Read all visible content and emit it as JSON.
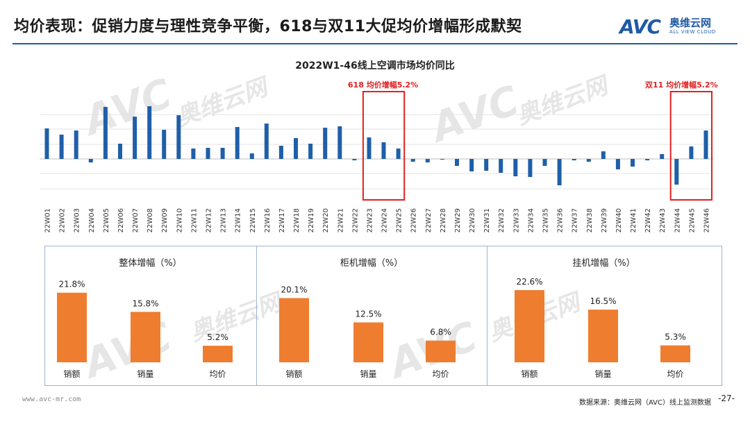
{
  "header": {
    "title": "均价表现：促销力度与理性竞争平衡，618与双11大促均价增幅形成默契",
    "logo_mark": "AVC",
    "logo_cn": "奥维云网",
    "logo_en": "ALL VIEW CLOUD"
  },
  "watermark": {
    "cn": "奥维云网",
    "en": "ALL VIEW CLOUD",
    "mark": "AVC"
  },
  "colors": {
    "bar": "#1f5fa9",
    "panel_bar": "#ef7d2f",
    "highlight": "#e02020",
    "accent": "#1f5aa6"
  },
  "chart_data": [
    {
      "type": "bar",
      "title": "2022W1-46线上空调市场均价同比",
      "categories": [
        "22W01",
        "22W02",
        "22W03",
        "22W04",
        "22W05",
        "22W06",
        "22W07",
        "22W08",
        "22W09",
        "22W10",
        "22W11",
        "22W12",
        "22W13",
        "22W14",
        "22W15",
        "22W16",
        "22W17",
        "22W18",
        "22W19",
        "22W20",
        "22W21",
        "22W22",
        "22W23",
        "22W24",
        "22W25",
        "22W26",
        "22W27",
        "22W28",
        "22W29",
        "22W30",
        "22W31",
        "22W32",
        "22W33",
        "22W34",
        "22W35",
        "22W36",
        "22W37",
        "22W38",
        "22W39",
        "22W40",
        "22W41",
        "22W42",
        "22W43",
        "22W44",
        "22W45",
        "22W46"
      ],
      "values": [
        44,
        35,
        41,
        -5,
        75,
        22,
        61,
        76,
        42,
        63,
        15,
        16,
        16,
        46,
        8,
        51,
        19,
        30,
        22,
        45,
        47,
        -2,
        31,
        24,
        15,
        -4,
        -5,
        -1,
        -10,
        -18,
        -17,
        -20,
        -25,
        -26,
        -10,
        -38,
        -2,
        -4,
        11,
        -15,
        -11,
        -2,
        7,
        -37,
        18,
        41
      ],
      "ylim": [
        -65,
        90
      ],
      "grid": true,
      "annotations": [
        {
          "label": "618  均价增幅5.2%",
          "from": "22W23",
          "to": "22W25"
        },
        {
          "label": "双11  均价增幅5.2%",
          "from": "22W44",
          "to": "22W46"
        }
      ]
    },
    {
      "type": "bar",
      "title": "整体增幅（%）",
      "categories": [
        "销额",
        "销量",
        "均价"
      ],
      "values": [
        21.8,
        15.8,
        5.2
      ],
      "data_labels": [
        "21.8%",
        "15.8%",
        "5.2%"
      ],
      "ylim": [
        0,
        22.6
      ]
    },
    {
      "type": "bar",
      "title": "柜机增幅（%）",
      "categories": [
        "销额",
        "销量",
        "均价"
      ],
      "values": [
        20.1,
        12.5,
        6.8
      ],
      "data_labels": [
        "20.1%",
        "12.5%",
        "6.8%"
      ],
      "ylim": [
        0,
        22.6
      ]
    },
    {
      "type": "bar",
      "title": "挂机增幅（%）",
      "categories": [
        "销额",
        "销量",
        "均价"
      ],
      "values": [
        22.6,
        16.5,
        5.3
      ],
      "data_labels": [
        "22.6%",
        "16.5%",
        "5.3%"
      ],
      "ylim": [
        0,
        22.6
      ]
    }
  ],
  "footer": {
    "website": "www.avc-mr.com",
    "source": "数据来源：奥维云网（AVC）线上监测数据",
    "page": "-27-"
  }
}
